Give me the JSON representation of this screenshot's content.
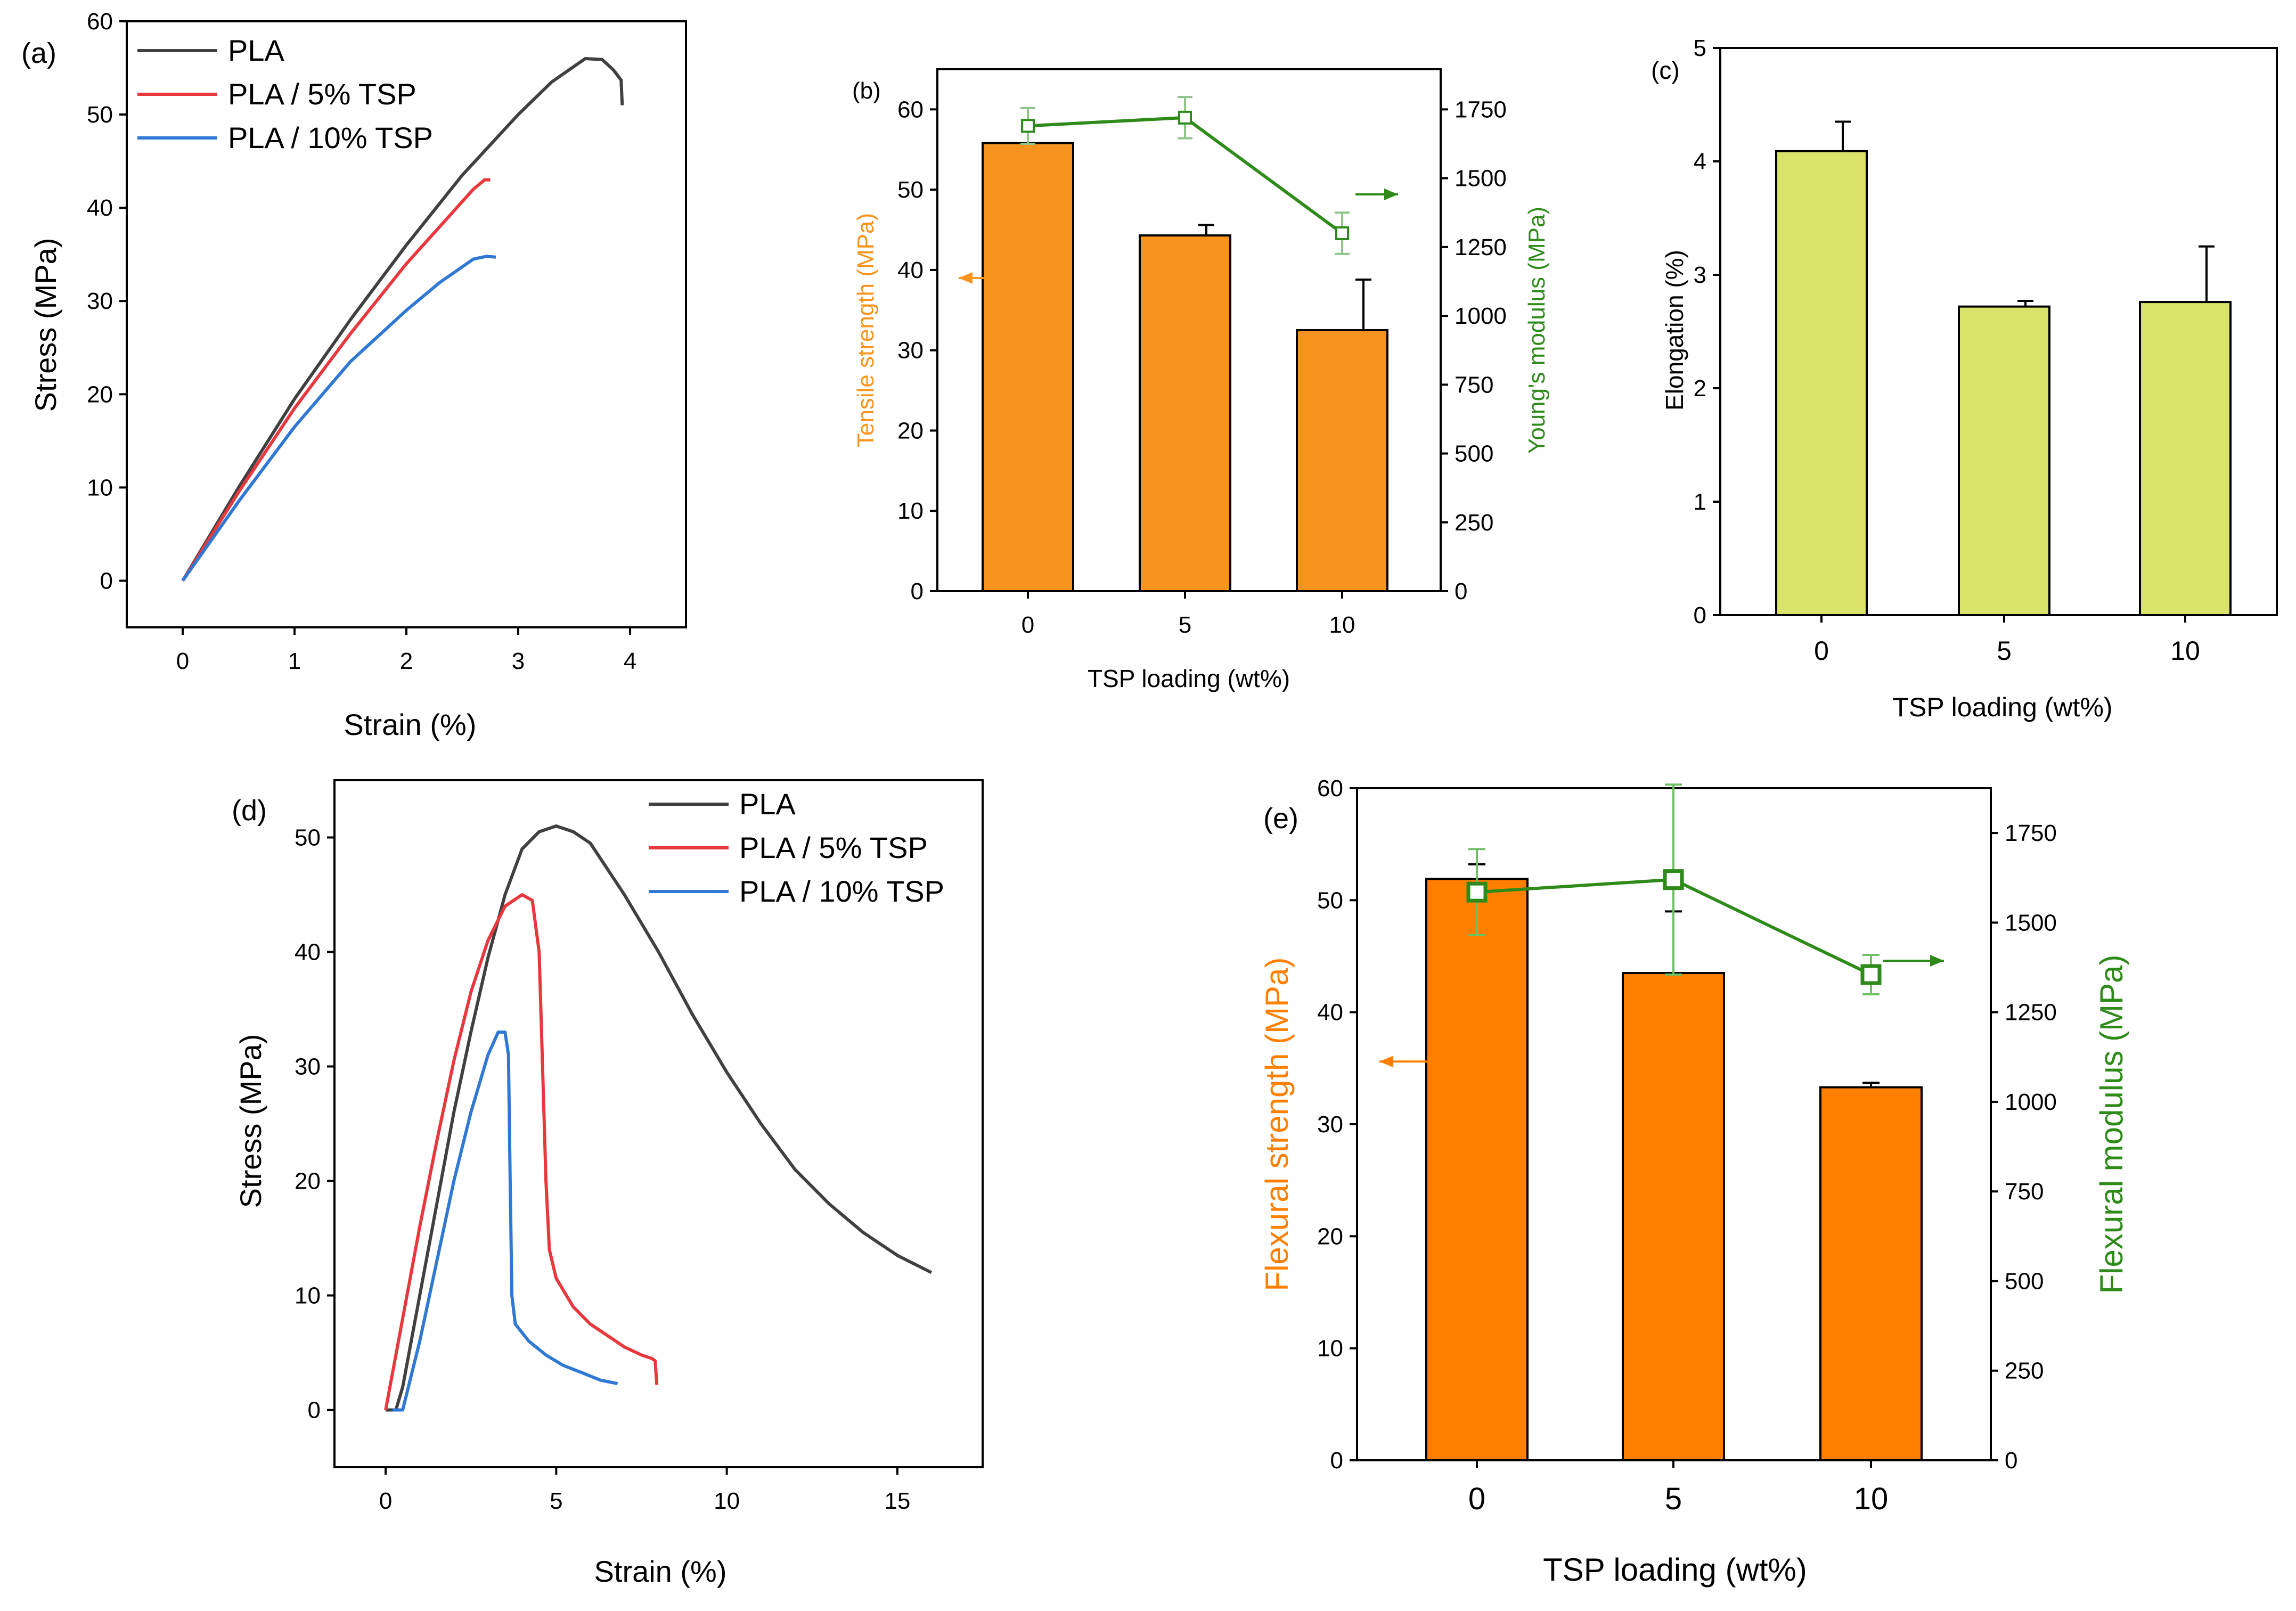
{
  "colors": {
    "pla": "#404040",
    "pla5": "#e8383d",
    "pla10": "#2f78d4",
    "bar_orange_b": "#f7941d",
    "bar_orange_e": "#ff7f00",
    "bar_green": "#d9e36a",
    "modulus_green": "#2e8b1a",
    "axis": "#000000"
  },
  "chart_data": [
    {
      "panel": "(a)",
      "type": "line",
      "xlabel": "Strain (%)",
      "ylabel": "Stress (MPa)",
      "xlim": [
        -0.5,
        4.5
      ],
      "ylim": [
        -5,
        60
      ],
      "xticks": [
        0,
        1,
        2,
        3,
        4
      ],
      "yticks": [
        0,
        10,
        20,
        30,
        40,
        50,
        60
      ],
      "legend": "top-left",
      "series": [
        {
          "name": "PLA",
          "x": [
            0,
            0.5,
            1,
            1.5,
            2,
            2.5,
            3,
            3.3,
            3.6,
            3.75,
            3.85,
            3.92,
            3.93
          ],
          "y": [
            0,
            10,
            19.5,
            28,
            36,
            43.5,
            50,
            53.5,
            56,
            55.9,
            54.8,
            53.7,
            51
          ]
        },
        {
          "name": "PLA / 5% TSP",
          "x": [
            0,
            0.5,
            1,
            1.5,
            2,
            2.3,
            2.6,
            2.7,
            2.75
          ],
          "y": [
            0,
            9.5,
            18.5,
            26.5,
            34,
            38,
            42,
            43,
            43
          ]
        },
        {
          "name": "PLA / 10% TSP",
          "x": [
            0,
            0.5,
            1,
            1.5,
            2,
            2.3,
            2.6,
            2.72,
            2.8
          ],
          "y": [
            0,
            8.5,
            16.5,
            23.5,
            29,
            32,
            34.5,
            34.8,
            34.7
          ]
        }
      ]
    },
    {
      "panel": "(b)",
      "type": "bar",
      "categories": [
        "0",
        "5",
        "10"
      ],
      "xlabel": "TSP loading (wt%)",
      "ylabel": "Tensile strength (MPa)",
      "y2label": "Young's modulus (MPa)",
      "ylim": [
        0,
        65
      ],
      "y2lim": [
        0,
        1895.8
      ],
      "yticks": [
        0,
        10,
        20,
        30,
        40,
        50,
        60
      ],
      "y2ticks": [
        0,
        250,
        500,
        750,
        1000,
        1250,
        1500,
        1750
      ],
      "series": [
        {
          "name": "Tensile strength (MPa)",
          "values": [
            55.8,
            44.3,
            32.5
          ],
          "errors": [
            0,
            1.3,
            6.3
          ]
        },
        {
          "name": "Young's modulus (MPa)",
          "values": [
            1690,
            1720,
            1300
          ],
          "errors": [
            65,
            75,
            75
          ]
        }
      ]
    },
    {
      "panel": "(c)",
      "type": "bar",
      "categories": [
        "0",
        "5",
        "10"
      ],
      "xlabel": "TSP loading (wt%)",
      "ylabel": "Elongation (%)",
      "ylim": [
        0,
        5
      ],
      "yticks": [
        0,
        1,
        2,
        3,
        4,
        5
      ],
      "series": [
        {
          "name": "Elongation (%)",
          "values": [
            4.09,
            2.72,
            2.76
          ],
          "errors": [
            0.26,
            0.05,
            0.49
          ]
        }
      ]
    },
    {
      "panel": "(d)",
      "type": "line",
      "xlabel": "Strain (%)",
      "ylabel": "Stress (MPa)",
      "xlim": [
        -1.5,
        17.5
      ],
      "ylim": [
        -5,
        55
      ],
      "xticks": [
        0,
        5,
        10,
        15
      ],
      "yticks": [
        0,
        10,
        20,
        30,
        40,
        50
      ],
      "legend": "top-right",
      "series": [
        {
          "name": "PLA",
          "x": [
            0,
            0.3,
            0.5,
            1,
            1.5,
            2,
            2.5,
            3,
            3.5,
            4,
            4.5,
            5,
            5.5,
            6,
            7,
            8,
            9,
            10,
            11,
            12,
            13,
            14,
            15,
            16
          ],
          "y": [
            0,
            0,
            2,
            10,
            18,
            26,
            33,
            39.5,
            45,
            49,
            50.5,
            51,
            50.5,
            49.5,
            45,
            40,
            34.5,
            29.5,
            25,
            21,
            18,
            15.5,
            13.5,
            12
          ]
        },
        {
          "name": "PLA / 5% TSP",
          "x": [
            0,
            0.5,
            1,
            1.5,
            2,
            2.5,
            3,
            3.5,
            4,
            4.3,
            4.5,
            4.6,
            4.7,
            4.8,
            5,
            5.5,
            6,
            6.5,
            7,
            7.5,
            7.8,
            7.9,
            7.95
          ],
          "y": [
            0,
            8,
            16,
            23.5,
            30.5,
            36.5,
            41,
            44,
            45,
            44.5,
            40,
            30,
            20,
            14,
            11.5,
            9,
            7.5,
            6.5,
            5.5,
            4.8,
            4.5,
            4.3,
            2.2
          ]
        },
        {
          "name": "PLA / 10% TSP",
          "x": [
            0.2,
            0.5,
            1,
            1.5,
            2,
            2.5,
            3,
            3.3,
            3.5,
            3.6,
            3.65,
            3.7,
            3.8,
            4.2,
            4.7,
            5.2,
            5.8,
            6.3,
            6.8
          ],
          "y": [
            0,
            0,
            6,
            13,
            20,
            26,
            31,
            33,
            33,
            31,
            20,
            10,
            7.5,
            6,
            4.8,
            3.9,
            3.2,
            2.6,
            2.3
          ]
        }
      ]
    },
    {
      "panel": "(e)",
      "type": "bar",
      "categories": [
        "0",
        "5",
        "10"
      ],
      "xlabel": "TSP loading (wt%)",
      "ylabel": "Flexural strength (MPa)",
      "y2label": "Flexural modulus (MPa)",
      "ylim": [
        0,
        60
      ],
      "y2lim": [
        0,
        1875
      ],
      "yticks": [
        0,
        10,
        20,
        30,
        40,
        50,
        60
      ],
      "y2ticks": [
        0,
        250,
        500,
        750,
        1000,
        1250,
        1500,
        1750
      ],
      "series": [
        {
          "name": "Flexural strength (MPa)",
          "values": [
            51.9,
            43.5,
            33.3
          ],
          "errors": [
            1.3,
            5.5,
            0.4
          ]
        },
        {
          "name": "Flexural modulus (MPa)",
          "values": [
            1585,
            1620,
            1355
          ],
          "errors": [
            120,
            265,
            55
          ]
        }
      ]
    }
  ]
}
